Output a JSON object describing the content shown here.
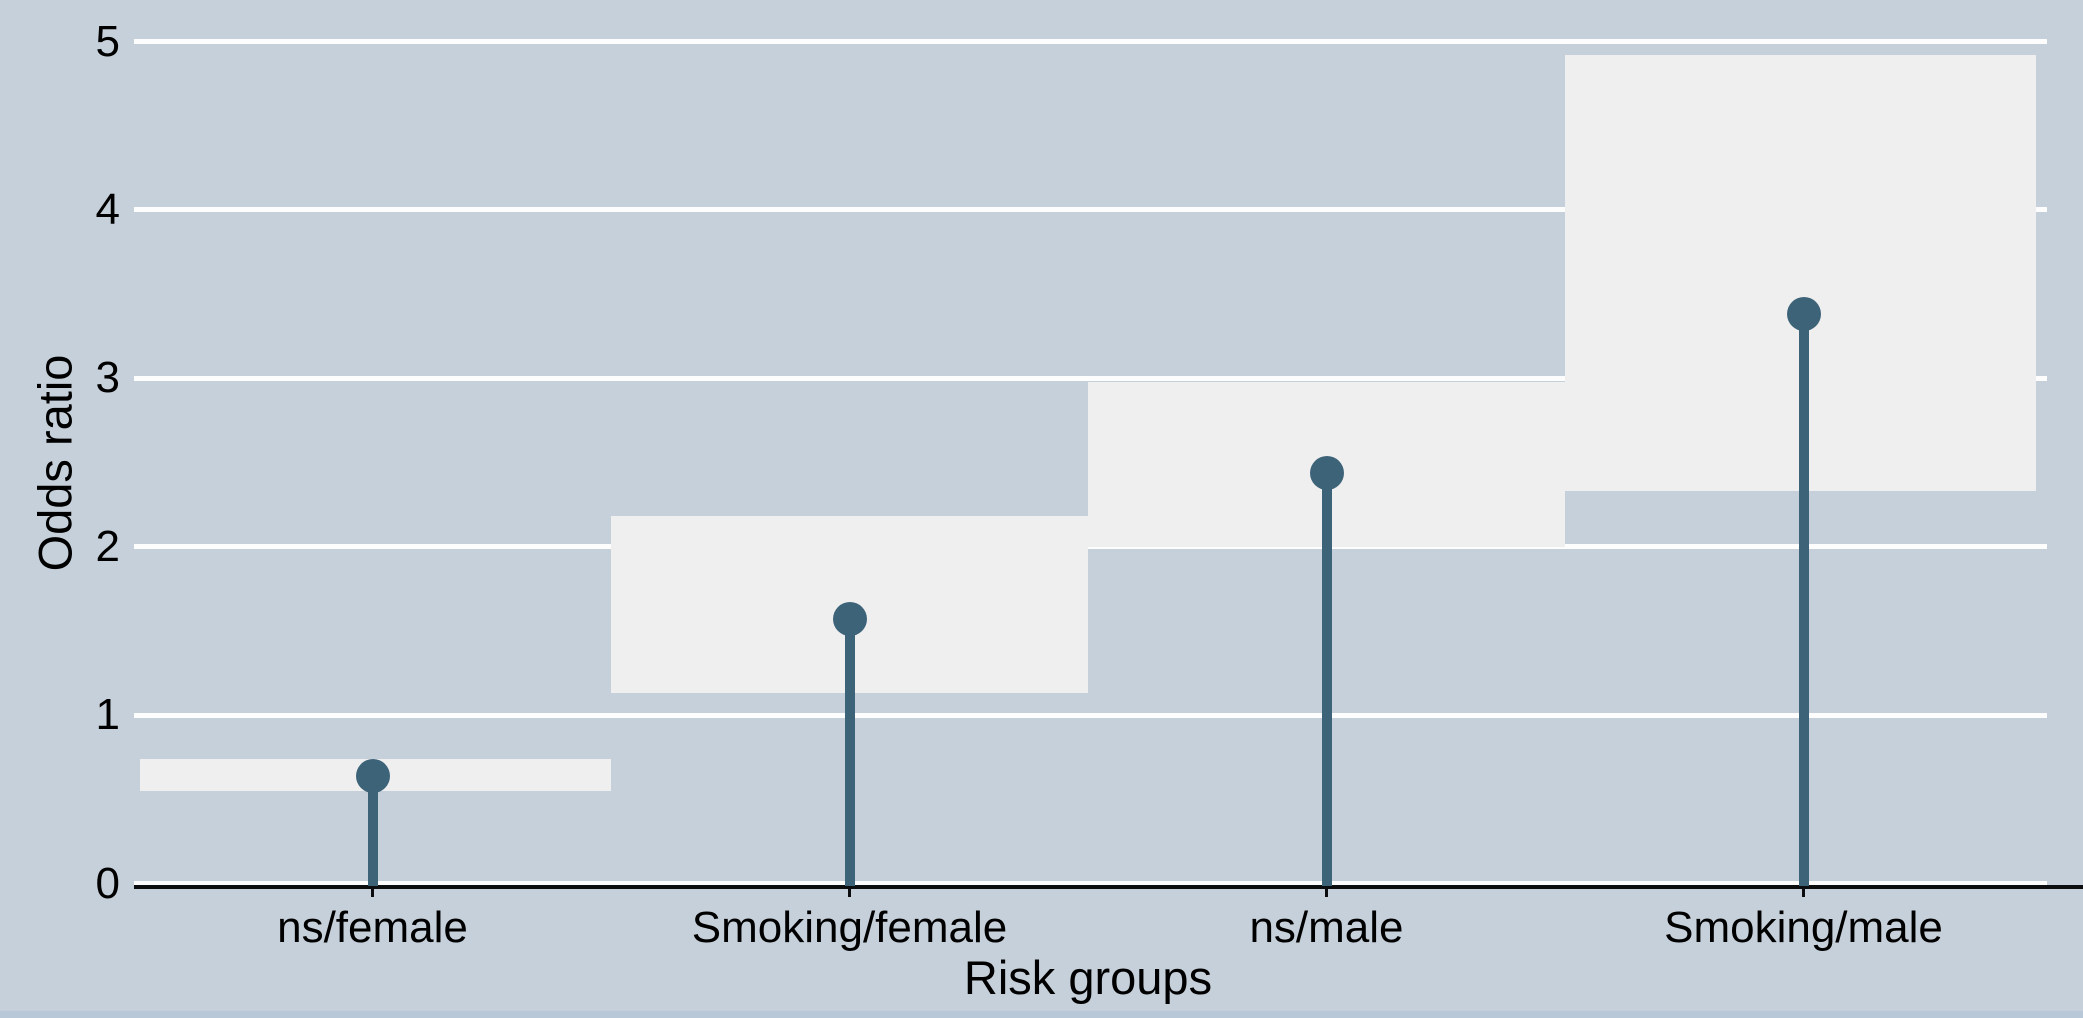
{
  "chart_data": {
    "type": "lollipop",
    "title": "",
    "xlabel": "Risk groups",
    "ylabel": "Odds ratio",
    "categories": [
      "ns/female",
      "Smoking/female",
      "ns/male",
      "Smoking/male"
    ],
    "odds_ratios": [
      0.64,
      1.57,
      2.44,
      3.38
    ],
    "ci_lower": [
      0.55,
      1.13,
      2.0,
      2.33
    ],
    "ci_upper": [
      0.74,
      2.18,
      2.98,
      4.92
    ],
    "y_ticks": [
      "0",
      "1",
      "2",
      "3",
      "4",
      "5"
    ],
    "ylim": [
      0,
      5
    ],
    "grid": "horizontal white gridlines at each integer tick",
    "legend": "none",
    "marks": {
      "ci_box": "light rectangle spanning the full category width from lower to upper confidence limit",
      "lollipop": "dark slate-blue vertical stem from 0 up to the odds ratio, topped with a filled circle"
    }
  },
  "colors": {
    "background": "#c6d0da",
    "ci_box_fill": "#efeff0",
    "lollipop": "#3d6379",
    "gridline": "#fdfdfe",
    "axis_line": "#0c0d0e",
    "text": "#000000",
    "bottom_strip": "#b9c8d9"
  }
}
